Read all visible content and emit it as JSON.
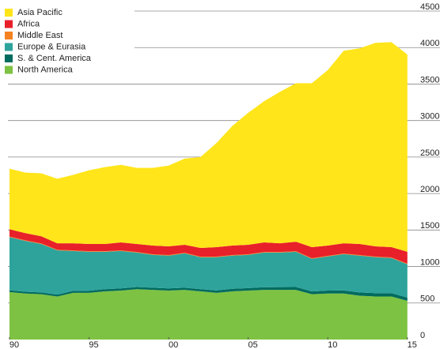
{
  "chart_data": {
    "type": "area",
    "stacked": true,
    "x": [
      1990,
      1991,
      1992,
      1993,
      1994,
      1995,
      1996,
      1997,
      1998,
      1999,
      2000,
      2001,
      2002,
      2003,
      2004,
      2005,
      2006,
      2007,
      2008,
      2009,
      2010,
      2011,
      2012,
      2013,
      2014,
      2015
    ],
    "series": [
      {
        "name": "North America",
        "color": "#7dc242",
        "values": [
          650,
          630,
          620,
          590,
          640,
          640,
          660,
          670,
          690,
          680,
          670,
          680,
          660,
          640,
          660,
          670,
          680,
          680,
          680,
          620,
          630,
          630,
          600,
          590,
          590,
          530
        ]
      },
      {
        "name": "S. & Cent. America",
        "color": "#006b5f",
        "values": [
          25,
          25,
          25,
          25,
          27,
          28,
          30,
          30,
          30,
          30,
          30,
          30,
          30,
          32,
          35,
          35,
          36,
          38,
          40,
          38,
          40,
          42,
          45,
          45,
          45,
          45
        ]
      },
      {
        "name": "Europe & Eurasia",
        "color": "#2ea39c",
        "values": [
          729,
          696,
          664,
          608,
          546,
          534,
          512,
          513,
          471,
          450,
          449,
          471,
          438,
          456,
          454,
          455,
          475,
          473,
          482,
          448,
          468,
          498,
          504,
          493,
          482,
          457
        ]
      },
      {
        "name": "Middle East",
        "color": "#f58220",
        "values": [
          8,
          8,
          8,
          8,
          8,
          8,
          8,
          8,
          8,
          8,
          8,
          8,
          8,
          8,
          8,
          8,
          8,
          8,
          8,
          8,
          8,
          8,
          8,
          8,
          8,
          8
        ]
      },
      {
        "name": "Africa",
        "color": "#e8202a",
        "values": [
          99,
          98,
          98,
          88,
          98,
          99,
          99,
          109,
          110,
          119,
          120,
          109,
          119,
          130,
          130,
          130,
          131,
          120,
          130,
          152,
          141,
          141,
          152,
          141,
          141,
          162
        ]
      },
      {
        "name": "Asia Pacific",
        "color": "#ffe51a",
        "values": [
          829,
          830,
          862,
          883,
          936,
          1010,
          1053,
          1064,
          1042,
          1064,
          1106,
          1181,
          1245,
          1425,
          1639,
          1808,
          1936,
          2075,
          2171,
          2245,
          2404,
          2638,
          2680,
          2787,
          2808,
          2702
        ]
      }
    ],
    "xlim": [
      1990,
      2017
    ],
    "xticks": [
      {
        "value": 1990,
        "label": "90"
      },
      {
        "value": 1995,
        "label": "95"
      },
      {
        "value": 2000,
        "label": "00"
      },
      {
        "value": 2005,
        "label": "05"
      },
      {
        "value": 2010,
        "label": "10"
      },
      {
        "value": 2015,
        "label": "15"
      }
    ],
    "ylim": [
      0,
      4500
    ],
    "yticks": [
      0,
      500,
      1000,
      1500,
      2000,
      2500,
      3000,
      3500,
      4000,
      4500
    ],
    "grid": true,
    "legend": "top-left"
  }
}
